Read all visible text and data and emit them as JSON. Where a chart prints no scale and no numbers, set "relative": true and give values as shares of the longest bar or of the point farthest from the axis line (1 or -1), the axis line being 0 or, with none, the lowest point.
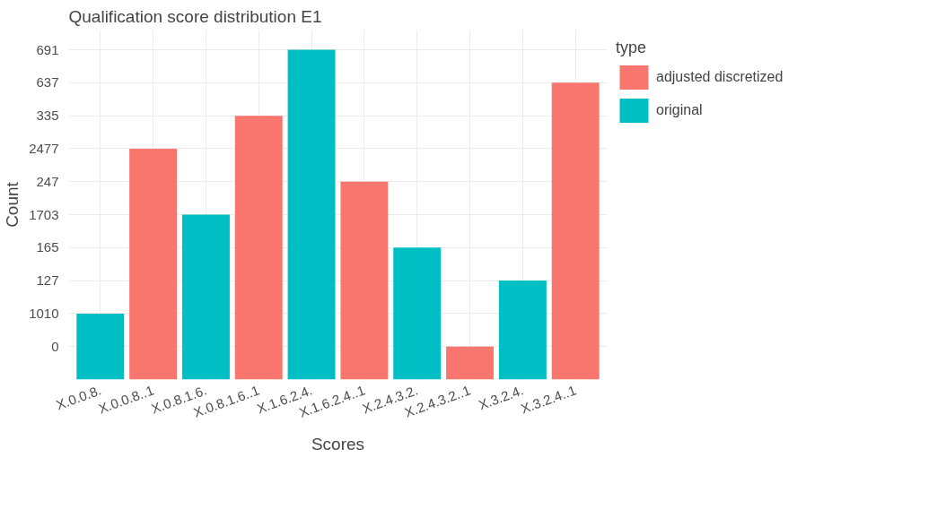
{
  "chart_data": {
    "type": "bar",
    "title": "Qualification score distribution E1",
    "xlabel": "Scores",
    "ylabel": "Count",
    "legend_title": "type",
    "relative": true,
    "categories": [
      "X.0.0.8.",
      "X.0.0.8..1",
      "X.0.8.1.6.",
      "X.0.8.1.6..1",
      "X.1.6.2.4.",
      "X.1.6.2.4..1",
      "X.2.4.3.2.",
      "X.2.4.3.2..1",
      "X.3.2.4.",
      "X.3.2.4..1"
    ],
    "y_categories": [
      "691",
      "637",
      "335",
      "2477",
      "247",
      "1703",
      "165",
      "127",
      "1010",
      "0"
    ],
    "series": [
      {
        "name": "adjusted discretized",
        "color": "#f8766d",
        "values": [
          null,
          0.7,
          null,
          0.8,
          null,
          0.6,
          null,
          0.1,
          null,
          0.9
        ]
      },
      {
        "name": "original",
        "color": "#00bfc4",
        "values": [
          0.2,
          null,
          0.5,
          null,
          1,
          null,
          0.4,
          null,
          0.3,
          null
        ]
      }
    ],
    "grid": true,
    "legend": "right"
  }
}
